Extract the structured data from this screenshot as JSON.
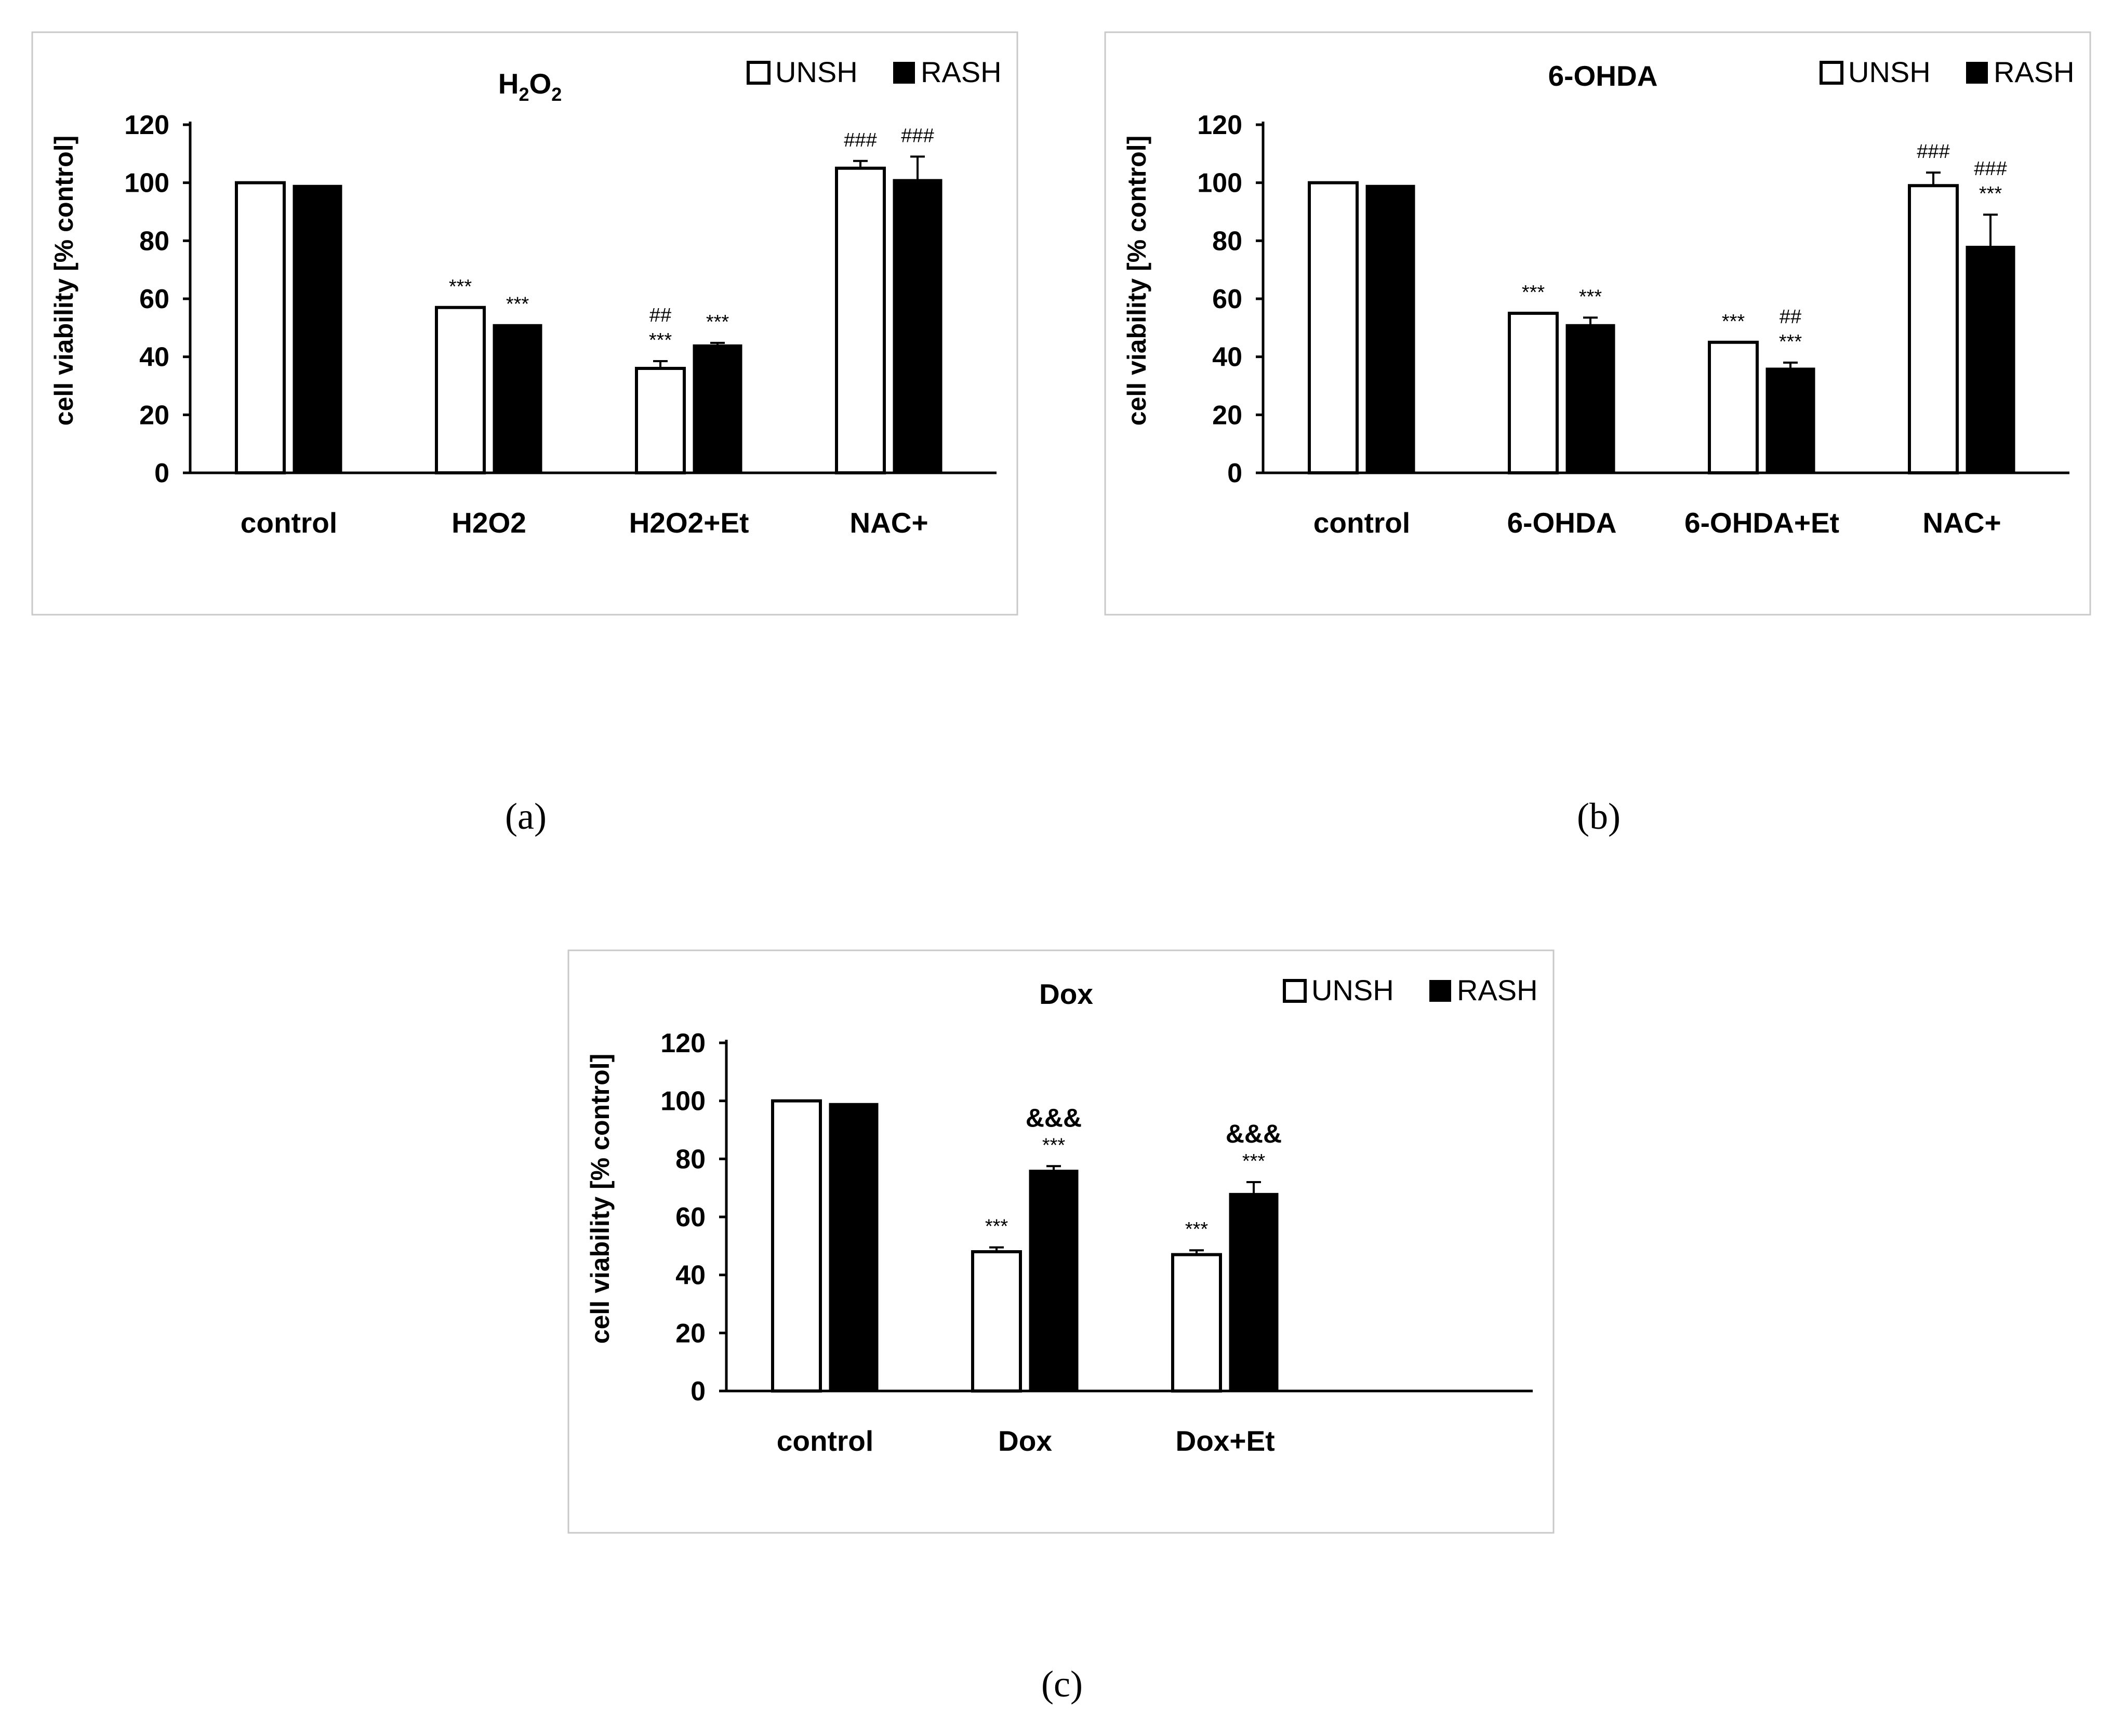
{
  "chart_data": [
    {
      "type": "bar",
      "panel": "a",
      "caption": "(a)",
      "title": "H2O2",
      "title_main": "H",
      "title_sub1": "2",
      "title_mid": "O",
      "title_sub2": "2",
      "ylabel": "cell viability [% control]",
      "xlabel": "",
      "ylim": [
        0,
        120
      ],
      "yticks": [
        "0",
        "20",
        "40",
        "60",
        "80",
        "100",
        "120"
      ],
      "legend": [
        "UNSH",
        "RASH"
      ],
      "legend_position": "top-right",
      "categories": [
        "control",
        "H2O2",
        "H2O2+Et",
        "NAC+"
      ],
      "series": [
        {
          "name": "UNSH",
          "values": [
            100,
            57,
            36,
            105
          ],
          "errors": [
            0,
            0,
            2.5,
            2.5
          ]
        },
        {
          "name": "RASH",
          "values": [
            99,
            51,
            44,
            101
          ],
          "errors": [
            0,
            0,
            0.8,
            8
          ]
        }
      ],
      "annotations": [
        {
          "category": 1,
          "series": 0,
          "lines": [
            "***"
          ]
        },
        {
          "category": 1,
          "series": 1,
          "lines": [
            "***"
          ]
        },
        {
          "category": 2,
          "series": 0,
          "lines": [
            "##",
            "***"
          ]
        },
        {
          "category": 2,
          "series": 1,
          "lines": [
            "***"
          ]
        },
        {
          "category": 3,
          "series": 0,
          "lines": [
            "###"
          ]
        },
        {
          "category": 3,
          "series": 1,
          "lines": [
            "###"
          ]
        }
      ]
    },
    {
      "type": "bar",
      "panel": "b",
      "caption": "(b)",
      "title": "6-OHDA",
      "ylabel": "cell viability [% control]",
      "xlabel": "",
      "ylim": [
        0,
        120
      ],
      "yticks": [
        "0",
        "20",
        "40",
        "60",
        "80",
        "100",
        "120"
      ],
      "legend": [
        "UNSH",
        "RASH"
      ],
      "legend_position": "top-right",
      "categories": [
        "control",
        "6-OHDA",
        "6-OHDA+Et",
        "NAC+"
      ],
      "series": [
        {
          "name": "UNSH",
          "values": [
            100,
            55,
            45,
            99
          ],
          "errors": [
            0,
            0,
            0,
            4.5
          ]
        },
        {
          "name": "RASH",
          "values": [
            99,
            51,
            36,
            78
          ],
          "errors": [
            0,
            2.5,
            2,
            11
          ]
        }
      ],
      "annotations": [
        {
          "category": 1,
          "series": 0,
          "lines": [
            "***"
          ]
        },
        {
          "category": 1,
          "series": 1,
          "lines": [
            "***"
          ]
        },
        {
          "category": 2,
          "series": 0,
          "lines": [
            "***"
          ]
        },
        {
          "category": 2,
          "series": 1,
          "lines": [
            "##",
            "***"
          ]
        },
        {
          "category": 3,
          "series": 0,
          "lines": [
            "###"
          ]
        },
        {
          "category": 3,
          "series": 1,
          "lines": [
            "###",
            "***"
          ]
        }
      ]
    },
    {
      "type": "bar",
      "panel": "c",
      "caption": "(c)",
      "title": "Dox",
      "ylabel": "cell viability [% control]",
      "xlabel": "",
      "ylim": [
        0,
        120
      ],
      "yticks": [
        "0",
        "20",
        "40",
        "60",
        "80",
        "100",
        "120"
      ],
      "legend": [
        "UNSH",
        "RASH"
      ],
      "legend_position": "top-right",
      "categories": [
        "control",
        "Dox",
        "Dox+Et"
      ],
      "series": [
        {
          "name": "UNSH",
          "values": [
            100,
            48,
            47
          ],
          "errors": [
            0,
            1.5,
            1.5
          ]
        },
        {
          "name": "RASH",
          "values": [
            99,
            76,
            68
          ],
          "errors": [
            0,
            1.5,
            4
          ]
        }
      ],
      "annotations": [
        {
          "category": 1,
          "series": 0,
          "lines": [
            "***"
          ]
        },
        {
          "category": 1,
          "series": 1,
          "lines": [
            "&&&",
            "***"
          ]
        },
        {
          "category": 2,
          "series": 0,
          "lines": [
            "***"
          ]
        },
        {
          "category": 2,
          "series": 1,
          "lines": [
            "&&&",
            "***"
          ]
        }
      ]
    }
  ]
}
